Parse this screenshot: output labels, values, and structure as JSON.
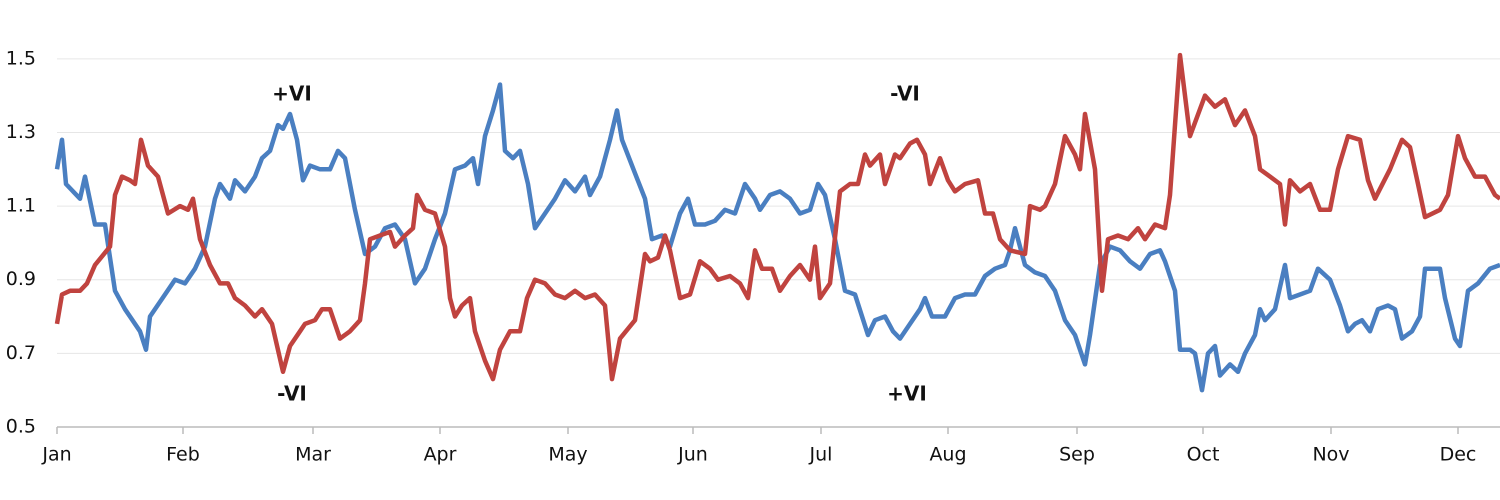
{
  "chart_data": {
    "type": "line",
    "xlim": [
      0,
      1443
    ],
    "ylim": [
      0.5,
      1.6
    ],
    "xticks": [
      {
        "value": 0,
        "label": "Jan"
      },
      {
        "value": 126,
        "label": "Feb"
      },
      {
        "value": 256,
        "label": "Mar"
      },
      {
        "value": 383,
        "label": "Apr"
      },
      {
        "value": 511,
        "label": "May"
      },
      {
        "value": 636,
        "label": "Jun"
      },
      {
        "value": 764,
        "label": "Jul"
      },
      {
        "value": 891,
        "label": "Aug"
      },
      {
        "value": 1020,
        "label": "Sep"
      },
      {
        "value": 1146,
        "label": "Oct"
      },
      {
        "value": 1274,
        "label": "Nov"
      },
      {
        "value": 1401,
        "label": "Dec"
      }
    ],
    "yticks": [
      0.5,
      0.7,
      0.9,
      1.1,
      1.3,
      1.5
    ],
    "grid": true,
    "annotations": [
      {
        "text": "+VI",
        "color": "#4a7fc1"
      },
      {
        "text": "-VI",
        "color": "#c0433f"
      },
      {
        "text": "-VI",
        "color": "#c0433f"
      },
      {
        "text": "+VI",
        "color": "#4a7fc1"
      }
    ],
    "series": [
      {
        "color": "#4a7fc1",
        "x": [
          0,
          5,
          9,
          23,
          28,
          38,
          48,
          58,
          68,
          83,
          89,
          93,
          108,
          118,
          128,
          138,
          148,
          158,
          163,
          173,
          178,
          188,
          198,
          205,
          213,
          221,
          226,
          233,
          240,
          246,
          253,
          263,
          273,
          281,
          288,
          298,
          308,
          318,
          328,
          338,
          348,
          358,
          368,
          378,
          388,
          398,
          408,
          416,
          421,
          428,
          436,
          443,
          448,
          456,
          463,
          471,
          478,
          488,
          498,
          508,
          518,
          528,
          533,
          543,
          553,
          560,
          565,
          575,
          588,
          595,
          605,
          613,
          623,
          631,
          638,
          648,
          658,
          668,
          678,
          688,
          698,
          703,
          713,
          723,
          733,
          743,
          753,
          761,
          768,
          778,
          788,
          798,
          811,
          818,
          828,
          836,
          843,
          853,
          863,
          868,
          875,
          888,
          898,
          908,
          918,
          928,
          938,
          948,
          953,
          958,
          968,
          978,
          988,
          998,
          1008,
          1018,
          1028,
          1033,
          1043,
          1053,
          1063,
          1073,
          1083,
          1093,
          1103,
          1108,
          1118,
          1123,
          1133,
          1138,
          1145,
          1151,
          1158,
          1163,
          1173,
          1181,
          1188,
          1198,
          1203,
          1208,
          1218,
          1228,
          1233,
          1243,
          1253,
          1261,
          1273,
          1283,
          1291,
          1298,
          1305,
          1313,
          1321,
          1331,
          1338,
          1345,
          1355,
          1363,
          1368,
          1383,
          1388,
          1398,
          1403,
          1411,
          1421,
          1433,
          1443
        ],
        "values": [
          1.2,
          1.28,
          1.16,
          1.12,
          1.18,
          1.05,
          1.05,
          0.87,
          0.82,
          0.76,
          0.71,
          0.8,
          0.86,
          0.9,
          0.89,
          0.93,
          0.99,
          1.12,
          1.16,
          1.12,
          1.17,
          1.14,
          1.18,
          1.23,
          1.25,
          1.32,
          1.31,
          1.35,
          1.28,
          1.17,
          1.21,
          1.2,
          1.2,
          1.25,
          1.23,
          1.09,
          0.97,
          0.99,
          1.04,
          1.05,
          1.01,
          0.89,
          0.93,
          1.01,
          1.08,
          1.2,
          1.21,
          1.23,
          1.16,
          1.29,
          1.36,
          1.43,
          1.25,
          1.23,
          1.25,
          1.16,
          1.04,
          1.08,
          1.12,
          1.17,
          1.14,
          1.18,
          1.13,
          1.18,
          1.28,
          1.36,
          1.28,
          1.21,
          1.12,
          1.01,
          1.02,
          0.99,
          1.08,
          1.12,
          1.05,
          1.05,
          1.06,
          1.09,
          1.08,
          1.16,
          1.12,
          1.09,
          1.13,
          1.14,
          1.12,
          1.08,
          1.09,
          1.16,
          1.13,
          1.01,
          0.87,
          0.86,
          0.75,
          0.79,
          0.8,
          0.76,
          0.74,
          0.78,
          0.82,
          0.85,
          0.8,
          0.8,
          0.85,
          0.86,
          0.86,
          0.91,
          0.93,
          0.94,
          0.98,
          1.04,
          0.94,
          0.92,
          0.91,
          0.87,
          0.79,
          0.75,
          0.67,
          0.75,
          0.94,
          0.99,
          0.98,
          0.95,
          0.93,
          0.97,
          0.98,
          0.95,
          0.87,
          0.71,
          0.71,
          0.7,
          0.6,
          0.7,
          0.72,
          0.64,
          0.67,
          0.65,
          0.7,
          0.75,
          0.82,
          0.79,
          0.82,
          0.94,
          0.85,
          0.86,
          0.87,
          0.93,
          0.9,
          0.83,
          0.76,
          0.78,
          0.79,
          0.76,
          0.82,
          0.83,
          0.82,
          0.74,
          0.76,
          0.8,
          0.93,
          0.93,
          0.85,
          0.74,
          0.72,
          0.87,
          0.89,
          0.93,
          0.94
        ]
      },
      {
        "color": "#c0433f",
        "x": [
          0,
          5,
          13,
          23,
          30,
          38,
          53,
          58,
          65,
          73,
          78,
          84,
          91,
          101,
          111,
          123,
          131,
          136,
          143,
          153,
          163,
          171,
          178,
          188,
          198,
          205,
          215,
          226,
          233,
          243,
          248,
          258,
          265,
          273,
          283,
          293,
          303,
          308,
          313,
          323,
          333,
          338,
          348,
          356,
          360,
          368,
          378,
          388,
          393,
          398,
          405,
          413,
          418,
          428,
          436,
          443,
          453,
          463,
          470,
          478,
          488,
          498,
          508,
          518,
          528,
          538,
          548,
          555,
          563,
          578,
          588,
          593,
          601,
          608,
          613,
          623,
          633,
          643,
          653,
          661,
          673,
          683,
          691,
          698,
          705,
          715,
          723,
          733,
          743,
          753,
          758,
          763,
          773,
          783,
          793,
          801,
          808,
          813,
          823,
          828,
          838,
          843,
          853,
          860,
          868,
          873,
          883,
          891,
          898,
          908,
          921,
          928,
          936,
          943,
          953,
          968,
          973,
          983,
          988,
          998,
          1008,
          1018,
          1023,
          1028,
          1038,
          1045,
          1051,
          1061,
          1071,
          1081,
          1088,
          1098,
          1108,
          1113,
          1123,
          1133,
          1148,
          1158,
          1168,
          1178,
          1188,
          1198,
          1203,
          1213,
          1223,
          1228,
          1233,
          1243,
          1253,
          1263,
          1273,
          1281,
          1291,
          1303,
          1311,
          1318,
          1333,
          1345,
          1353,
          1361,
          1368,
          1383,
          1391,
          1401,
          1408,
          1418,
          1428,
          1438,
          1443
        ],
        "values": [
          0.78,
          0.86,
          0.87,
          0.87,
          0.89,
          0.94,
          0.99,
          1.13,
          1.18,
          1.17,
          1.16,
          1.28,
          1.21,
          1.18,
          1.08,
          1.1,
          1.09,
          1.12,
          1.01,
          0.94,
          0.89,
          0.89,
          0.85,
          0.83,
          0.8,
          0.82,
          0.78,
          0.65,
          0.72,
          0.76,
          0.78,
          0.79,
          0.82,
          0.82,
          0.74,
          0.76,
          0.79,
          0.89,
          1.01,
          1.02,
          1.03,
          0.99,
          1.02,
          1.04,
          1.13,
          1.09,
          1.08,
          0.99,
          0.85,
          0.8,
          0.83,
          0.85,
          0.76,
          0.68,
          0.63,
          0.71,
          0.76,
          0.76,
          0.85,
          0.9,
          0.89,
          0.86,
          0.85,
          0.87,
          0.85,
          0.86,
          0.83,
          0.63,
          0.74,
          0.79,
          0.97,
          0.95,
          0.96,
          1.02,
          0.98,
          0.85,
          0.86,
          0.95,
          0.93,
          0.9,
          0.91,
          0.89,
          0.85,
          0.98,
          0.93,
          0.93,
          0.87,
          0.91,
          0.94,
          0.9,
          0.99,
          0.85,
          0.89,
          1.14,
          1.16,
          1.16,
          1.24,
          1.21,
          1.24,
          1.16,
          1.24,
          1.23,
          1.27,
          1.28,
          1.24,
          1.16,
          1.23,
          1.17,
          1.14,
          1.16,
          1.17,
          1.08,
          1.08,
          1.01,
          0.98,
          0.97,
          1.1,
          1.09,
          1.1,
          1.16,
          1.29,
          1.24,
          1.2,
          1.35,
          1.2,
          0.87,
          1.01,
          1.02,
          1.01,
          1.04,
          1.01,
          1.05,
          1.04,
          1.13,
          1.51,
          1.29,
          1.4,
          1.37,
          1.39,
          1.32,
          1.36,
          1.29,
          1.2,
          1.18,
          1.16,
          1.05,
          1.17,
          1.14,
          1.16,
          1.09,
          1.09,
          1.2,
          1.29,
          1.28,
          1.17,
          1.12,
          1.2,
          1.28,
          1.26,
          1.16,
          1.07,
          1.09,
          1.13,
          1.29,
          1.23,
          1.18,
          1.18,
          1.13,
          1.12
        ]
      }
    ]
  }
}
